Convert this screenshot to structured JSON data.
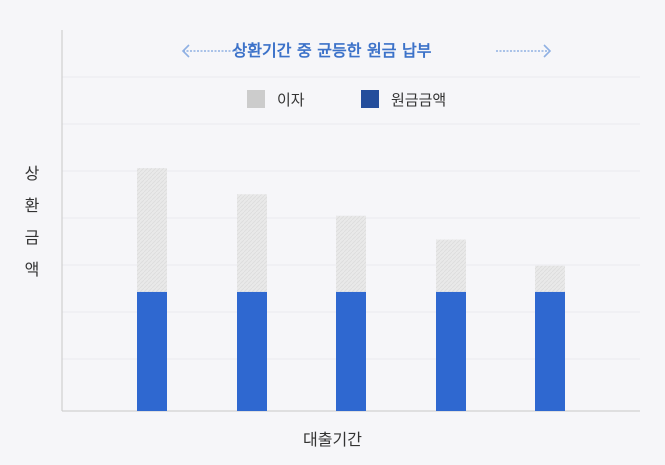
{
  "chart_data": {
    "type": "bar",
    "stacked": true,
    "title": "상환기간 중 균등한 원금 납부",
    "xlabel": "대출기간",
    "ylabel": "상환금액",
    "categories": [
      "",
      "",
      "",
      "",
      ""
    ],
    "series": [
      {
        "name": "원금금액",
        "values": [
          5,
          5,
          5,
          5,
          5
        ]
      },
      {
        "name": "이자",
        "values": [
          5.2,
          4.1,
          3.2,
          2.2,
          1.1
        ]
      }
    ],
    "ylim": [
      0,
      16
    ],
    "grid": true,
    "legend_position": "top-center",
    "colors": {
      "principal": "#2f68d0",
      "interest": "#e6e6e6",
      "legend_principal": "#244e9c",
      "legend_interest": "#cccccc",
      "title": "#3c72c9",
      "arrow": "#8fb0e3",
      "grid": "#ebebef",
      "axis": "#c8c8c8"
    }
  }
}
